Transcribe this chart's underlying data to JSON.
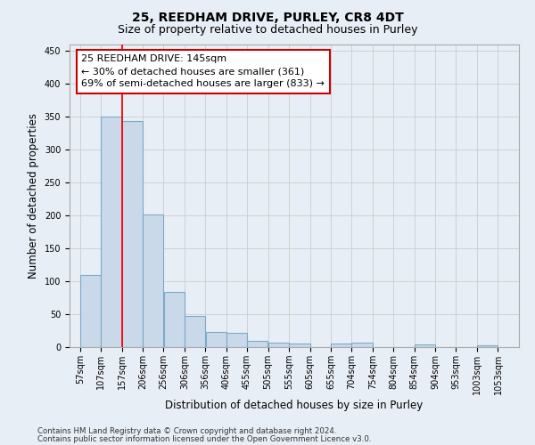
{
  "title": "25, REEDHAM DRIVE, PURLEY, CR8 4DT",
  "subtitle": "Size of property relative to detached houses in Purley",
  "xlabel": "Distribution of detached houses by size in Purley",
  "ylabel": "Number of detached properties",
  "footer1": "Contains HM Land Registry data © Crown copyright and database right 2024.",
  "footer2": "Contains public sector information licensed under the Open Government Licence v3.0.",
  "bar_left_edges": [
    57,
    107,
    157,
    206,
    256,
    306,
    356,
    406,
    455,
    505,
    555,
    605,
    655,
    704,
    754,
    804,
    854,
    904,
    953,
    1003
  ],
  "bar_widths": [
    50,
    50,
    49,
    50,
    50,
    50,
    50,
    49,
    50,
    50,
    50,
    50,
    49,
    50,
    50,
    50,
    50,
    49,
    50,
    50
  ],
  "bar_heights": [
    110,
    350,
    343,
    202,
    84,
    47,
    23,
    21,
    9,
    7,
    6,
    0,
    5,
    7,
    0,
    0,
    4,
    0,
    0,
    3
  ],
  "bar_color": "#c9d9ea",
  "bar_edgecolor": "#7aaac8",
  "ylim": [
    0,
    460
  ],
  "yticks": [
    0,
    50,
    100,
    150,
    200,
    250,
    300,
    350,
    400,
    450
  ],
  "xlim": [
    32,
    1103
  ],
  "xtick_labels": [
    "57sqm",
    "107sqm",
    "157sqm",
    "206sqm",
    "256sqm",
    "306sqm",
    "356sqm",
    "406sqm",
    "455sqm",
    "505sqm",
    "555sqm",
    "605sqm",
    "655sqm",
    "704sqm",
    "754sqm",
    "804sqm",
    "854sqm",
    "904sqm",
    "953sqm",
    "1003sqm",
    "1053sqm"
  ],
  "xtick_positions": [
    57,
    107,
    157,
    206,
    256,
    306,
    356,
    406,
    455,
    505,
    555,
    605,
    655,
    704,
    754,
    804,
    854,
    904,
    953,
    1003,
    1053
  ],
  "red_line_x": 157,
  "annotation_text": "25 REEDHAM DRIVE: 145sqm\n← 30% of detached houses are smaller (361)\n69% of semi-detached houses are larger (833) →",
  "annotation_box_facecolor": "#ffffff",
  "annotation_box_edgecolor": "#cc0000",
  "grid_color": "#cccccc",
  "bg_color": "#e8eef5",
  "title_fontsize": 10,
  "subtitle_fontsize": 9,
  "axis_label_fontsize": 8.5,
  "tick_fontsize": 7,
  "annotation_fontsize": 8,
  "footer_fontsize": 6.2
}
